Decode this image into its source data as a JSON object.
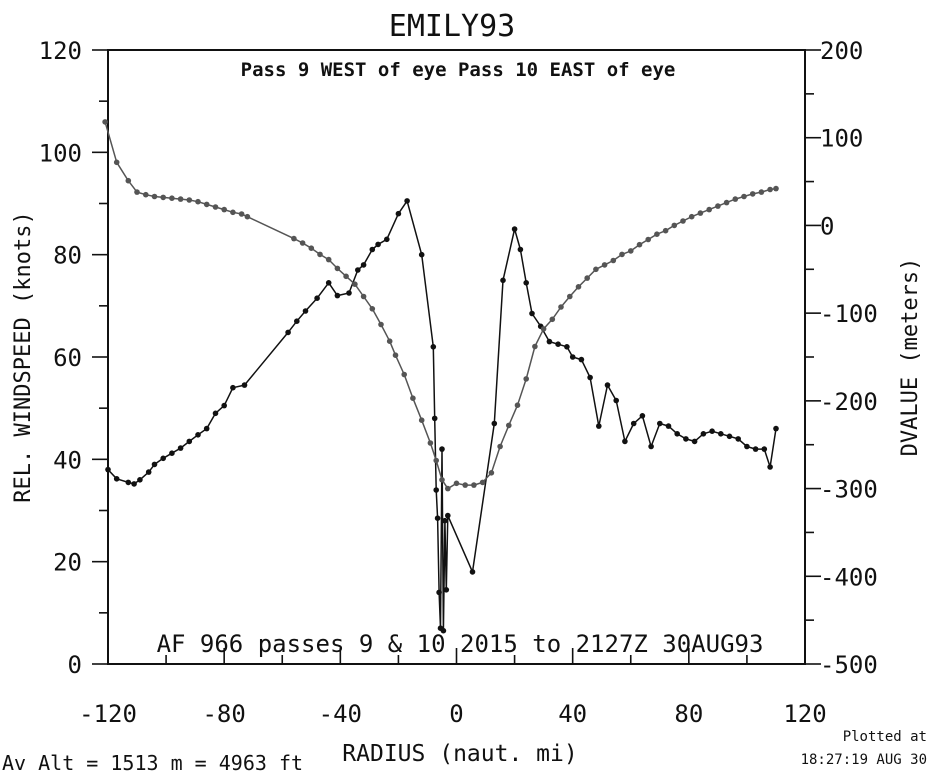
{
  "header": {
    "title": "EMILY93",
    "subtitle": "Pass  9 WEST of eye Pass 10 EAST of eye",
    "flight_info": "AF 966  passes  9 & 10  2015 to 2127Z 30AUG93"
  },
  "footer": {
    "altitude_text": "Av  Alt  = 1513 m  =   4963 ft",
    "plotted_label": "Plotted at",
    "plotted_time": "18:27:19 AUG 30"
  },
  "chart_data": {
    "type": "line",
    "xlabel": "RADIUS (naut. mi)",
    "ylabel": "REL. WINDSPEED (knots)",
    "ylabel_right": "DVALUE (meters)",
    "xlim": [
      -120,
      120
    ],
    "ylim": [
      0,
      120
    ],
    "ylim_right": [
      -500,
      200
    ],
    "x_ticks": [
      "-120",
      "-80",
      "-40",
      "0",
      "40",
      "80",
      "120"
    ],
    "y_ticks": [
      "0",
      "20",
      "40",
      "60",
      "80",
      "100",
      "120"
    ],
    "y_ticks_right": [
      "-500",
      "-400",
      "-300",
      "-200",
      "-100",
      "0",
      "100",
      "200"
    ],
    "grid": false,
    "series": [
      {
        "axis": "left",
        "color": "#111111",
        "points": [
          [
            -120,
            38
          ],
          [
            -117,
            36.2
          ],
          [
            -113,
            35.5
          ],
          [
            -111,
            35.2
          ],
          [
            -109,
            36
          ],
          [
            -106,
            37.5
          ],
          [
            -104,
            39
          ],
          [
            -101,
            40.2
          ],
          [
            -98,
            41.2
          ],
          [
            -95,
            42.2
          ],
          [
            -92,
            43.5
          ],
          [
            -89,
            44.8
          ],
          [
            -86,
            46
          ],
          [
            -83,
            49
          ],
          [
            -80,
            50.5
          ],
          [
            -77,
            54
          ],
          [
            -73,
            54.5
          ],
          [
            -58,
            64.8
          ],
          [
            -55,
            67
          ],
          [
            -52,
            69
          ],
          [
            -48,
            71.5
          ],
          [
            -44,
            74.5
          ],
          [
            -41,
            72
          ],
          [
            -37,
            72.5
          ],
          [
            -34,
            77
          ],
          [
            -32,
            78
          ],
          [
            -29,
            81
          ],
          [
            -27,
            82
          ],
          [
            -24,
            83
          ],
          [
            -20,
            88
          ],
          [
            -17,
            90.5
          ],
          [
            -12,
            80
          ],
          [
            -8,
            62
          ],
          [
            -7.5,
            48
          ],
          [
            -7,
            34
          ],
          [
            -6.5,
            28.5
          ],
          [
            -6,
            14
          ],
          [
            -5.5,
            7
          ],
          [
            -5,
            42
          ],
          [
            -4.5,
            6.5
          ],
          [
            -4,
            28
          ],
          [
            -3.5,
            14.5
          ],
          [
            -3,
            29
          ],
          [
            5.5,
            18
          ],
          [
            13,
            47
          ],
          [
            16,
            75
          ],
          [
            20,
            85
          ],
          [
            22,
            81
          ],
          [
            24,
            74.5
          ],
          [
            26,
            68.5
          ],
          [
            29,
            66
          ],
          [
            32,
            63
          ],
          [
            35,
            62.5
          ],
          [
            38,
            62
          ],
          [
            40,
            60
          ],
          [
            43,
            59.5
          ],
          [
            46,
            56
          ],
          [
            49,
            46.5
          ],
          [
            52,
            54.5
          ],
          [
            55,
            51.5
          ],
          [
            58,
            43.5
          ],
          [
            61,
            47
          ],
          [
            64,
            48.5
          ],
          [
            67,
            42.5
          ],
          [
            70,
            47
          ],
          [
            73,
            46.5
          ],
          [
            76,
            45
          ],
          [
            79,
            44
          ],
          [
            82,
            43.5
          ],
          [
            85,
            45
          ],
          [
            88,
            45.5
          ],
          [
            91,
            45
          ],
          [
            94,
            44.5
          ],
          [
            97,
            44
          ],
          [
            100,
            42.5
          ],
          [
            103,
            42
          ],
          [
            106,
            42
          ],
          [
            108,
            38.5
          ],
          [
            110,
            46
          ]
        ]
      },
      {
        "axis": "right",
        "color": "#555555",
        "points": [
          [
            -121,
            118
          ],
          [
            -117,
            72
          ],
          [
            -113,
            51
          ],
          [
            -110,
            38
          ],
          [
            -107,
            35
          ],
          [
            -104,
            33
          ],
          [
            -101,
            32
          ],
          [
            -98,
            31
          ],
          [
            -95,
            30
          ],
          [
            -92,
            29
          ],
          [
            -89,
            27
          ],
          [
            -86,
            24
          ],
          [
            -83,
            21
          ],
          [
            -80,
            18
          ],
          [
            -77,
            15
          ],
          [
            -74,
            13
          ],
          [
            -72,
            10
          ],
          [
            -56,
            -15
          ],
          [
            -53,
            -20
          ],
          [
            -50,
            -26
          ],
          [
            -47,
            -33
          ],
          [
            -44,
            -39
          ],
          [
            -41,
            -49
          ],
          [
            -38,
            -58
          ],
          [
            -35,
            -67
          ],
          [
            -32,
            -81
          ],
          [
            -29,
            -95
          ],
          [
            -26,
            -113
          ],
          [
            -23,
            -132
          ],
          [
            -21,
            -148
          ],
          [
            -18,
            -170
          ],
          [
            -15,
            -197
          ],
          [
            -12,
            -222
          ],
          [
            -9,
            -248
          ],
          [
            -7,
            -268
          ],
          [
            -5,
            -290
          ],
          [
            -3,
            -300
          ],
          [
            0,
            -294
          ],
          [
            3,
            -296
          ],
          [
            6,
            -296
          ],
          [
            9,
            -293
          ],
          [
            12,
            -282
          ],
          [
            15,
            -252
          ],
          [
            18,
            -228
          ],
          [
            21,
            -205
          ],
          [
            24,
            -175
          ],
          [
            27,
            -138
          ],
          [
            30,
            -118
          ],
          [
            33,
            -107
          ],
          [
            36,
            -93
          ],
          [
            39,
            -81
          ],
          [
            42,
            -70
          ],
          [
            45,
            -60
          ],
          [
            48,
            -50
          ],
          [
            51,
            -45
          ],
          [
            54,
            -40
          ],
          [
            57,
            -33
          ],
          [
            60,
            -29
          ],
          [
            63,
            -22
          ],
          [
            66,
            -16
          ],
          [
            69,
            -10
          ],
          [
            72,
            -6
          ],
          [
            75,
            0
          ],
          [
            78,
            5
          ],
          [
            81,
            10
          ],
          [
            84,
            14
          ],
          [
            87,
            18
          ],
          [
            90,
            22
          ],
          [
            93,
            26
          ],
          [
            96,
            30
          ],
          [
            99,
            33
          ],
          [
            102,
            36
          ],
          [
            105,
            38
          ],
          [
            108,
            41
          ],
          [
            110,
            42
          ]
        ]
      }
    ]
  }
}
